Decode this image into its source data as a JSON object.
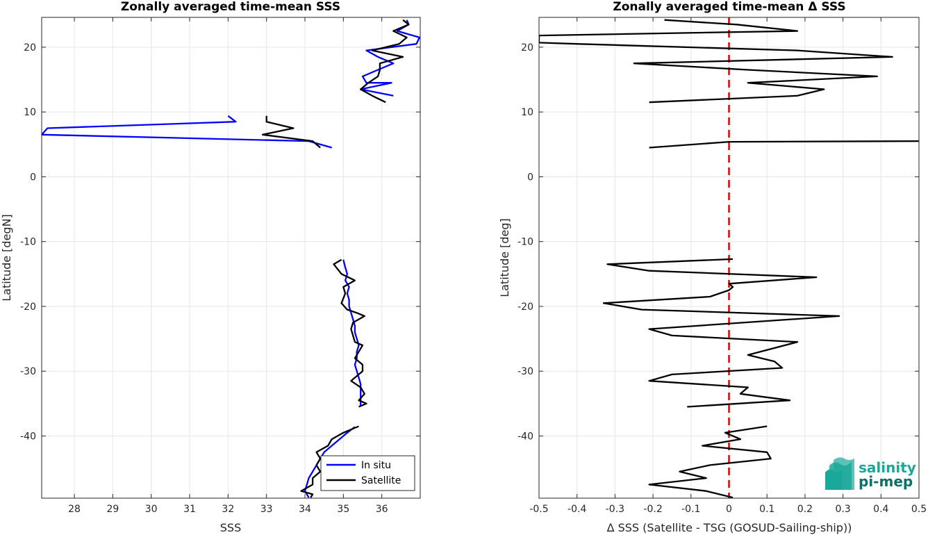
{
  "colors": {
    "insitu": "#0000ff",
    "satellite": "#000000",
    "zero_line": "#e00000",
    "grid": "#e6e6e6",
    "axis": "#262626",
    "logo_teal": "#1aa89a",
    "logo_dark": "#0e6f66"
  },
  "logo": {
    "line1": "salinity",
    "line2": "pi-mep"
  },
  "chart_data": [
    {
      "type": "line",
      "title": "Zonally averaged time-mean SSS",
      "xlabel": "SSS",
      "ylabel": "Latitude [degN]",
      "xlim": [
        27.15,
        37.0
      ],
      "ylim": [
        -49.6,
        24.6
      ],
      "xticks": [
        28,
        29,
        30,
        31,
        32,
        33,
        34,
        35,
        36
      ],
      "yticks": [
        -40,
        -30,
        -20,
        -10,
        0,
        10,
        20
      ],
      "grid": true,
      "legend": {
        "position": "bottom-right",
        "entries": [
          "In situ",
          "Satellite"
        ]
      },
      "series": [
        {
          "name": "In situ",
          "color_key": "insitu",
          "segments": [
            [
              [
                36.65,
                24.2
              ],
              [
                36.7,
                23.5
              ],
              [
                36.4,
                22.5
              ],
              [
                36.98,
                21.5
              ],
              [
                36.9,
                20.5
              ],
              [
                35.6,
                19.5
              ],
              [
                35.9,
                18.5
              ],
              [
                36.3,
                17.5
              ],
              [
                35.9,
                16.5
              ],
              [
                35.5,
                15.5
              ],
              [
                35.6,
                14.5
              ],
              [
                36.25,
                14.5
              ],
              [
                35.45,
                13.5
              ],
              [
                36.3,
                12.5
              ]
            ],
            [
              [
                32.0,
                9.4
              ],
              [
                32.2,
                8.5
              ],
              [
                27.3,
                7.5
              ],
              [
                27.15,
                6.5
              ],
              [
                34.1,
                5.5
              ],
              [
                34.7,
                4.5
              ]
            ],
            [
              [
                35.0,
                -12.8
              ],
              [
                35.05,
                -14.0
              ],
              [
                35.1,
                -15.0
              ],
              [
                35.05,
                -16.0
              ],
              [
                35.15,
                -17.0
              ],
              [
                35.1,
                -18.0
              ],
              [
                35.15,
                -19.0
              ],
              [
                35.15,
                -20.0
              ],
              [
                35.2,
                -21.0
              ],
              [
                35.25,
                -22.0
              ],
              [
                35.3,
                -23.0
              ],
              [
                35.3,
                -24.0
              ],
              [
                35.35,
                -25.0
              ],
              [
                35.4,
                -26.0
              ],
              [
                35.35,
                -27.0
              ],
              [
                35.35,
                -28.0
              ],
              [
                35.3,
                -29.0
              ],
              [
                35.35,
                -30.0
              ],
              [
                35.4,
                -31.0
              ],
              [
                35.45,
                -32.0
              ],
              [
                35.45,
                -33.0
              ],
              [
                35.45,
                -34.0
              ],
              [
                35.45,
                -35.4
              ]
            ],
            [
              [
                35.3,
                -38.6
              ],
              [
                35.1,
                -39.5
              ],
              [
                34.9,
                -40.5
              ],
              [
                34.7,
                -41.5
              ],
              [
                34.5,
                -42.5
              ],
              [
                34.4,
                -43.5
              ],
              [
                34.3,
                -44.5
              ],
              [
                34.2,
                -45.5
              ],
              [
                34.1,
                -46.5
              ],
              [
                34.05,
                -47.5
              ],
              [
                34.0,
                -48.5
              ],
              [
                34.1,
                -49.5
              ]
            ]
          ]
        },
        {
          "name": "Satellite",
          "color_key": "satellite",
          "segments": [
            [
              [
                36.55,
                24.2
              ],
              [
                36.7,
                23.5
              ],
              [
                36.3,
                22.5
              ],
              [
                36.65,
                21.5
              ],
              [
                36.45,
                20.5
              ],
              [
                35.75,
                19.5
              ],
              [
                36.55,
                18.5
              ],
              [
                35.95,
                17.5
              ],
              [
                35.95,
                16.5
              ],
              [
                35.9,
                15.5
              ],
              [
                35.65,
                14.5
              ],
              [
                35.45,
                13.5
              ],
              [
                35.75,
                12.5
              ],
              [
                36.1,
                11.5
              ]
            ],
            [
              [
                33.0,
                9.4
              ],
              [
                33.0,
                8.5
              ],
              [
                33.7,
                7.5
              ],
              [
                32.9,
                6.5
              ],
              [
                34.2,
                5.5
              ],
              [
                34.4,
                4.5
              ]
            ],
            [
              [
                34.95,
                -12.8
              ],
              [
                34.75,
                -13.5
              ],
              [
                34.95,
                -15.0
              ],
              [
                35.3,
                -16.0
              ],
              [
                35.0,
                -17.0
              ],
              [
                35.05,
                -18.0
              ],
              [
                34.95,
                -19.5
              ],
              [
                35.1,
                -20.5
              ],
              [
                35.35,
                -21.0
              ],
              [
                35.55,
                -21.5
              ],
              [
                35.25,
                -22.5
              ],
              [
                35.2,
                -23.5
              ],
              [
                35.25,
                -24.5
              ],
              [
                35.3,
                -25.5
              ],
              [
                35.5,
                -26.0
              ],
              [
                35.4,
                -27.0
              ],
              [
                35.3,
                -28.0
              ],
              [
                35.5,
                -29.0
              ],
              [
                35.5,
                -30.0
              ],
              [
                35.3,
                -31.0
              ],
              [
                35.2,
                -31.5
              ],
              [
                35.45,
                -32.5
              ],
              [
                35.55,
                -33.5
              ],
              [
                35.4,
                -34.5
              ],
              [
                35.6,
                -35.0
              ],
              [
                35.4,
                -35.5
              ]
            ],
            [
              [
                35.4,
                -38.5
              ],
              [
                35.0,
                -39.5
              ],
              [
                34.7,
                -40.5
              ],
              [
                34.6,
                -41.5
              ],
              [
                34.3,
                -42.5
              ],
              [
                34.4,
                -43.5
              ],
              [
                34.3,
                -44.5
              ],
              [
                34.4,
                -45.5
              ],
              [
                34.2,
                -46.5
              ],
              [
                34.2,
                -47.5
              ],
              [
                33.9,
                -48.5
              ],
              [
                34.2,
                -49.0
              ],
              [
                34.15,
                -49.5
              ]
            ]
          ]
        }
      ]
    },
    {
      "type": "line",
      "title": "Zonally averaged time-mean Δ SSS",
      "xlabel": "Δ SSS (Satellite - TSG (GOSUD-Sailing-ship))",
      "ylabel": "Latitude [deg]",
      "xlim": [
        -0.5,
        0.5
      ],
      "ylim": [
        -49.6,
        24.6
      ],
      "xticks": [
        -0.5,
        -0.4,
        -0.3,
        -0.2,
        -0.1,
        0,
        0.1,
        0.2,
        0.3,
        0.4,
        0.5
      ],
      "xticklabels": [
        "-0.5",
        "-0.4",
        "-0.3",
        "-0.2",
        "-0.1",
        "0",
        "0.1",
        "0.2",
        "0.3",
        "0.4",
        "0.5"
      ],
      "yticks": [
        -40,
        -30,
        -20,
        -10,
        0,
        10,
        20
      ],
      "grid": true,
      "zero_line": 0,
      "series": [
        {
          "color_key": "satellite",
          "segments": [
            [
              [
                -0.17,
                24.2
              ],
              [
                0.02,
                23.5
              ],
              [
                0.18,
                22.5
              ],
              [
                -0.5,
                21.8
              ],
              [
                -0.5,
                20.7
              ],
              [
                -0.4,
                20.5
              ],
              [
                0.18,
                19.5
              ],
              [
                0.43,
                18.5
              ],
              [
                -0.25,
                17.5
              ],
              [
                0.05,
                16.5
              ],
              [
                0.39,
                15.5
              ],
              [
                0.05,
                14.5
              ],
              [
                0.25,
                13.5
              ],
              [
                0.18,
                12.5
              ],
              [
                -0.21,
                11.5
              ]
            ],
            [
              [
                -0.21,
                4.5
              ],
              [
                0.0,
                5.4
              ],
              [
                0.5,
                5.5
              ]
            ],
            [
              [
                0.01,
                -12.7
              ],
              [
                -0.32,
                -13.5
              ],
              [
                -0.21,
                -14.5
              ],
              [
                0.23,
                -15.5
              ],
              [
                0.0,
                -16.5
              ],
              [
                0.01,
                -17.0
              ],
              [
                0.0,
                -17.5
              ],
              [
                -0.05,
                -18.5
              ],
              [
                -0.33,
                -19.5
              ],
              [
                -0.23,
                -20.5
              ],
              [
                0.29,
                -21.5
              ],
              [
                -0.21,
                -23.5
              ],
              [
                -0.15,
                -24.5
              ],
              [
                0.18,
                -25.5
              ],
              [
                0.05,
                -27.5
              ],
              [
                0.12,
                -28.5
              ],
              [
                0.14,
                -29.5
              ],
              [
                -0.15,
                -30.5
              ],
              [
                -0.21,
                -31.5
              ],
              [
                0.05,
                -32.5
              ],
              [
                0.03,
                -33.5
              ],
              [
                0.16,
                -34.5
              ],
              [
                -0.11,
                -35.5
              ]
            ],
            [
              [
                0.1,
                -38.5
              ],
              [
                -0.01,
                -39.5
              ],
              [
                0.03,
                -40.5
              ],
              [
                -0.07,
                -41.5
              ],
              [
                0.1,
                -42.5
              ],
              [
                0.11,
                -43.5
              ],
              [
                -0.05,
                -44.5
              ],
              [
                -0.13,
                -45.5
              ],
              [
                -0.06,
                -46.5
              ],
              [
                -0.21,
                -47.5
              ],
              [
                -0.06,
                -48.5
              ],
              [
                0.01,
                -49.5
              ]
            ]
          ]
        }
      ]
    }
  ]
}
